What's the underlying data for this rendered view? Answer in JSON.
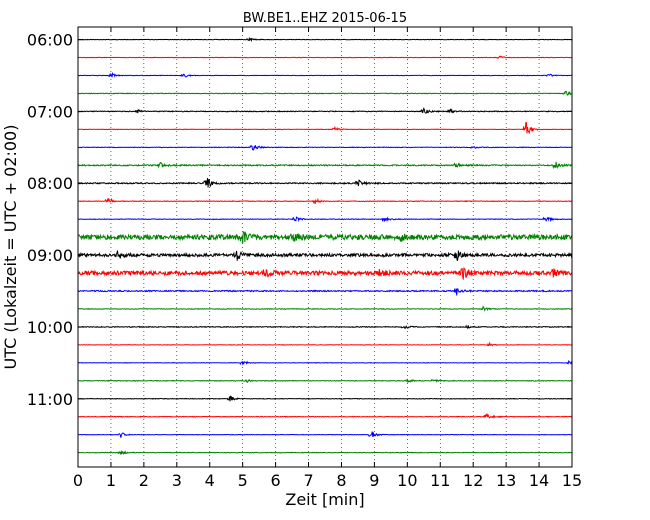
{
  "chart_data": {
    "type": "line",
    "title": "BW.BE1..EHZ 2015-06-15",
    "xlabel": "Zeit  [min]",
    "ylabel": "UTC (Lokalzeit = UTC + 02:00)",
    "xlim": [
      0,
      15
    ],
    "x_ticks": [
      "0",
      "1",
      "2",
      "3",
      "4",
      "5",
      "6",
      "7",
      "8",
      "9",
      "10",
      "11",
      "12",
      "13",
      "14",
      "15"
    ],
    "y_tick_labels": [
      "06:00",
      "07:00",
      "08:00",
      "09:00",
      "10:00",
      "11:00"
    ],
    "grid": true,
    "trace_interval_minutes": 15,
    "trace_colors": [
      "#000000",
      "#ff0000",
      "#0000ff",
      "#008000"
    ],
    "traces": [
      {
        "start": "06:00",
        "noise": 0.02,
        "events": [
          [
            5.2,
            0.18
          ]
        ]
      },
      {
        "start": "06:15",
        "noise": 0.02,
        "events": [
          [
            12.8,
            0.2
          ]
        ]
      },
      {
        "start": "06:30",
        "noise": 0.02,
        "events": [
          [
            1.0,
            0.3
          ],
          [
            3.2,
            0.25
          ],
          [
            14.3,
            0.2
          ]
        ]
      },
      {
        "start": "06:45",
        "noise": 0.03,
        "events": [
          [
            14.8,
            0.3
          ]
        ]
      },
      {
        "start": "07:00",
        "noise": 0.04,
        "events": [
          [
            1.8,
            0.2
          ],
          [
            10.5,
            0.3
          ],
          [
            11.3,
            0.2
          ]
        ]
      },
      {
        "start": "07:15",
        "noise": 0.02,
        "events": [
          [
            7.8,
            0.2
          ],
          [
            13.6,
            0.8
          ]
        ]
      },
      {
        "start": "07:30",
        "noise": 0.03,
        "events": [
          [
            5.3,
            0.4
          ],
          [
            12.0,
            0.2
          ]
        ]
      },
      {
        "start": "07:45",
        "noise": 0.06,
        "events": [
          [
            2.5,
            0.3
          ],
          [
            11.5,
            0.4
          ],
          [
            14.5,
            0.4
          ]
        ]
      },
      {
        "start": "08:00",
        "noise": 0.06,
        "events": [
          [
            3.9,
            0.7
          ],
          [
            8.5,
            0.35
          ]
        ]
      },
      {
        "start": "08:15",
        "noise": 0.03,
        "events": [
          [
            0.9,
            0.4
          ],
          [
            7.2,
            0.3
          ]
        ]
      },
      {
        "start": "08:30",
        "noise": 0.03,
        "events": [
          [
            6.6,
            0.3
          ],
          [
            9.3,
            0.3
          ],
          [
            14.2,
            0.3
          ]
        ]
      },
      {
        "start": "08:45",
        "noise": 0.25,
        "events": [
          [
            5.0,
            0.5
          ],
          [
            6.5,
            0.5
          ],
          [
            9.8,
            0.4
          ]
        ]
      },
      {
        "start": "09:00",
        "noise": 0.15,
        "events": [
          [
            1.2,
            0.45
          ],
          [
            4.8,
            0.6
          ],
          [
            11.5,
            0.5
          ]
        ]
      },
      {
        "start": "09:15",
        "noise": 0.2,
        "events": [
          [
            5.7,
            0.5
          ],
          [
            9.2,
            0.5
          ],
          [
            11.7,
            0.8
          ],
          [
            14.4,
            0.4
          ]
        ]
      },
      {
        "start": "09:30",
        "noise": 0.06,
        "events": [
          [
            11.5,
            0.5
          ]
        ]
      },
      {
        "start": "09:45",
        "noise": 0.03,
        "events": [
          [
            12.3,
            0.2
          ]
        ]
      },
      {
        "start": "10:00",
        "noise": 0.04,
        "events": [
          [
            9.9,
            0.2
          ],
          [
            11.8,
            0.2
          ]
        ]
      },
      {
        "start": "10:15",
        "noise": 0.02,
        "events": [
          [
            12.5,
            0.15
          ]
        ]
      },
      {
        "start": "10:30",
        "noise": 0.02,
        "events": [
          [
            5.0,
            0.25
          ],
          [
            14.9,
            0.2
          ]
        ]
      },
      {
        "start": "10:45",
        "noise": 0.03,
        "events": [
          [
            5.1,
            0.2
          ],
          [
            10.0,
            0.25
          ],
          [
            10.8,
            0.2
          ]
        ]
      },
      {
        "start": "11:00",
        "noise": 0.03,
        "events": [
          [
            4.6,
            0.35
          ]
        ]
      },
      {
        "start": "11:15",
        "noise": 0.03,
        "events": [
          [
            12.4,
            0.3
          ]
        ]
      },
      {
        "start": "11:30",
        "noise": 0.02,
        "events": [
          [
            1.3,
            0.3
          ],
          [
            8.9,
            0.4
          ]
        ]
      },
      {
        "start": "11:45",
        "noise": 0.03,
        "events": [
          [
            1.3,
            0.25
          ]
        ]
      }
    ]
  }
}
